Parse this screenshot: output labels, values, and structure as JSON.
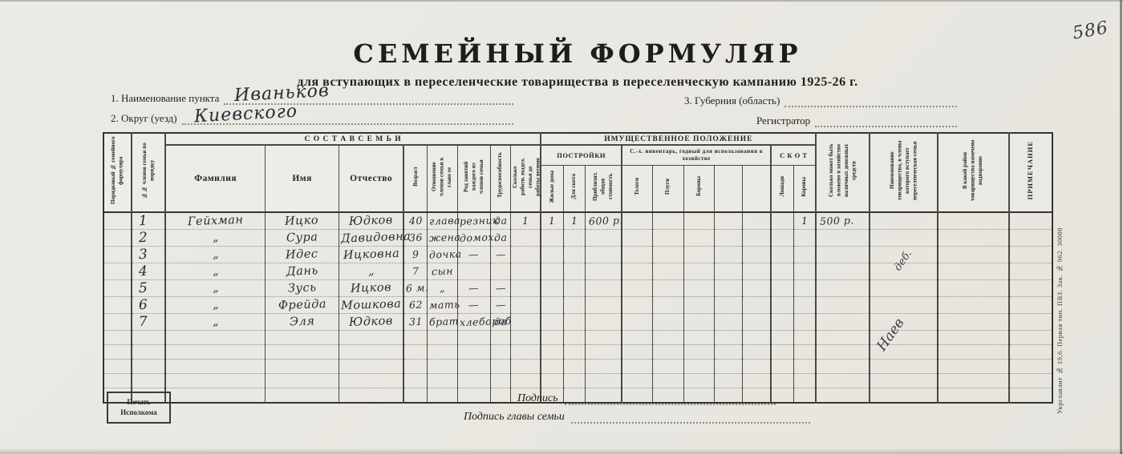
{
  "page": {
    "corner_note": "586",
    "title": "СЕМЕЙНЫЙ ФОРМУЛЯР",
    "subtitle": "для вступающих в переселенческие товарищества в переселенческую кампанию 1925-26 г.",
    "fields": {
      "point_label": "1. Наименование пункта",
      "point_value": "Иваньков",
      "okrug_label": "2. Округ (уезд)",
      "okrug_value": "Киевского",
      "guberniya_label": "3. Губерния (область)",
      "registrar_label": "Регистратор"
    }
  },
  "table": {
    "groups": {
      "family": "С О С Т А В   С Е М Ь И",
      "property": "ИМУЩЕСТВЕННОЕ ПОЛОЖЕНИЕ",
      "buildings": "ПОСТРОЙКИ",
      "inventory": "С.-х. инвентарь, годный для использования в хозяйстве",
      "livestock": "С К О Т"
    },
    "headers": {
      "form_no": "Порядковый № семейного формуляра",
      "member_no": "№№ членов семьи по порядку",
      "surname": "Фамилия",
      "name": "Имя",
      "patronymic": "Отчество",
      "age": "Возраст",
      "relation": "Отношение членов семьи к главе ее",
      "occupation": "Род занятий каждого из членов семьи",
      "workability": "Трудоспособность",
      "workers": "Сколько работн. выдел. семья до работы весною",
      "dwellings": "Жилые дома",
      "cattle_sheds": "Для скота",
      "approx_value": "Приблизит. общая стоимость",
      "carts": "Телеги",
      "plows": "Плуги",
      "harrows": "Бороны",
      "horses": "Лошади",
      "cows": "Коровы",
      "cash": "Сколько может быть вложено в хозяйство наличных денежных средств",
      "partnership": "Наименование товарищества, в члены которого вступает переселенческая семья",
      "district": "В какой район товарищества намечено водворение",
      "note": "ПРИМЕЧАНИЕ"
    },
    "rows": [
      {
        "m": "1",
        "surname": "Гейхман",
        "name": "Ицко",
        "patronymic": "Юдков",
        "age": "40",
        "relation": "глава",
        "occupation": "резник",
        "able": "да",
        "workers": "1",
        "dwell": "1",
        "shed": "1",
        "value": "600 р.",
        "cows": "1",
        "cash": "500 р."
      },
      {
        "m": "2",
        "surname": "„",
        "name": "Сура",
        "patronymic": "Давидовна",
        "age": "36",
        "relation": "жена",
        "occupation": "домох.",
        "able": "да"
      },
      {
        "m": "3",
        "surname": "„",
        "name": "Идес",
        "patronymic": "Ицковна",
        "age": "9",
        "relation": "дочка",
        "occupation": "—",
        "able": "—"
      },
      {
        "m": "4",
        "surname": "„",
        "name": "Дань",
        "patronymic": "„",
        "age": "7",
        "relation": "сын"
      },
      {
        "m": "5",
        "surname": "„",
        "name": "Зусь",
        "patronymic": "Ицков",
        "age": "6 м.",
        "relation": "„",
        "occupation": "—",
        "able": "—"
      },
      {
        "m": "6",
        "surname": "„",
        "name": "Фрейда",
        "patronymic": "Мошкова",
        "age": "62",
        "relation": "мать",
        "occupation": "—",
        "able": "—"
      },
      {
        "m": "7",
        "surname": "„",
        "name": "Эля",
        "patronymic": "Юдков",
        "age": "31",
        "relation": "брат",
        "occupation": "хлебороб",
        "able": "да"
      },
      {},
      {},
      {},
      {},
      {}
    ]
  },
  "annotations": {
    "diagonal_note_top": "деб.",
    "diagonal_note_bottom": "Наев"
  },
  "footer": {
    "seal_line1": "Печать",
    "seal_line2": "Исполкома",
    "signature_label": "Подпись",
    "head_signature_label": "Подпись главы семьи",
    "imprint": "Укрглавлит № 19,6.  Первая тип. ПВЗ.  Зак. № 962.  30000"
  }
}
